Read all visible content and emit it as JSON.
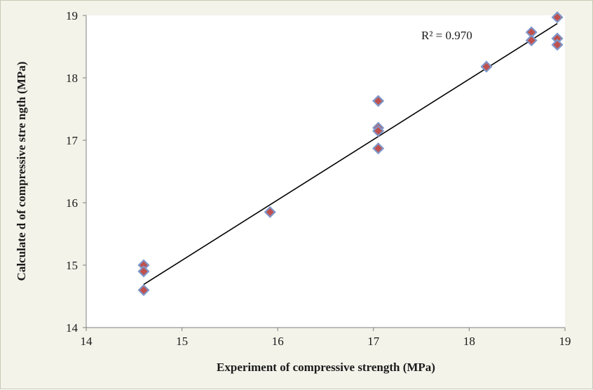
{
  "chart_data": {
    "type": "scatter",
    "title": "",
    "xlabel": "Experiment of compressive strength (MPa)",
    "ylabel": "Calculate d of compressive stre ngth (MPa)",
    "xlim": [
      14,
      19
    ],
    "ylim": [
      14,
      19
    ],
    "xticks": [
      "14",
      "15",
      "16",
      "17",
      "18",
      "19"
    ],
    "yticks": [
      "14",
      "15",
      "16",
      "17",
      "18",
      "19"
    ],
    "grid": false,
    "legend": "none",
    "marker": {
      "shape": "diamond",
      "fill": "#c0504d",
      "outline": "#7f97c9"
    },
    "line_color": "#000000",
    "points": [
      {
        "x": 14.6,
        "y": 15.0
      },
      {
        "x": 14.6,
        "y": 14.9
      },
      {
        "x": 14.6,
        "y": 14.6
      },
      {
        "x": 15.92,
        "y": 15.85
      },
      {
        "x": 17.05,
        "y": 17.63
      },
      {
        "x": 17.05,
        "y": 17.2
      },
      {
        "x": 17.05,
        "y": 17.15
      },
      {
        "x": 17.05,
        "y": 16.87
      },
      {
        "x": 18.18,
        "y": 18.18
      },
      {
        "x": 18.65,
        "y": 18.73
      },
      {
        "x": 18.65,
        "y": 18.6
      },
      {
        "x": 18.92,
        "y": 18.97
      },
      {
        "x": 18.92,
        "y": 18.63
      },
      {
        "x": 18.92,
        "y": 18.53
      }
    ],
    "trendline": {
      "x": [
        14.6,
        18.92
      ],
      "y": [
        14.69,
        18.87
      ]
    },
    "annotation": "R² =  0.970"
  }
}
